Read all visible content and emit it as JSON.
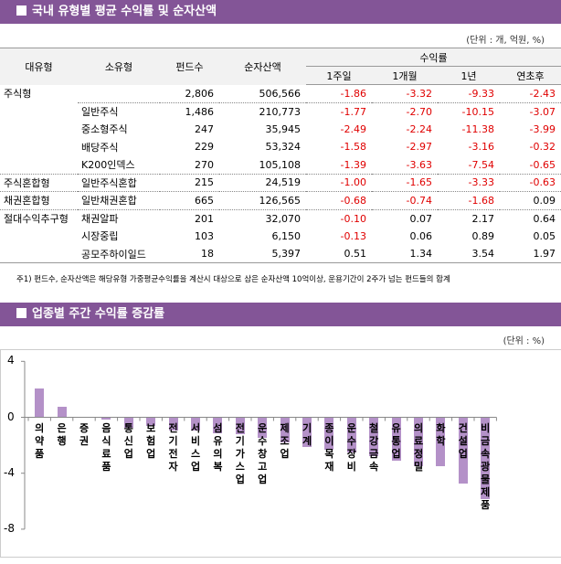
{
  "table_section": {
    "title": "국내 유형별 평균 수익률 및 순자산액",
    "unit": "(단위 : 개, 억원, %)",
    "headers": {
      "major_type": "대유형",
      "minor_type": "소유형",
      "fund_count": "펀드수",
      "net_assets": "순자산액",
      "returns_group": "수익률",
      "week1": "1주일",
      "month1": "1개월",
      "year1": "1년",
      "ytd": "연초후"
    },
    "rows": [
      {
        "major": "주식형",
        "minor": "",
        "count": "2,806",
        "assets": "506,566",
        "w1": "-1.86",
        "m1": "-3.32",
        "y1": "-9.33",
        "ytd": "-2.43"
      },
      {
        "major": "",
        "minor": "일반주식",
        "count": "1,486",
        "assets": "210,773",
        "w1": "-1.77",
        "m1": "-2.70",
        "y1": "-10.15",
        "ytd": "-3.07"
      },
      {
        "major": "",
        "minor": "중소형주식",
        "count": "247",
        "assets": "35,945",
        "w1": "-2.49",
        "m1": "-2.24",
        "y1": "-11.38",
        "ytd": "-3.99"
      },
      {
        "major": "",
        "minor": "배당주식",
        "count": "229",
        "assets": "53,324",
        "w1": "-1.58",
        "m1": "-2.97",
        "y1": "-3.16",
        "ytd": "-0.32"
      },
      {
        "major": "",
        "minor": "K200인덱스",
        "count": "270",
        "assets": "105,108",
        "w1": "-1.39",
        "m1": "-3.63",
        "y1": "-7.54",
        "ytd": "-0.65"
      },
      {
        "major": "주식혼합형",
        "minor": "일반주식혼합",
        "count": "215",
        "assets": "24,519",
        "w1": "-1.00",
        "m1": "-1.65",
        "y1": "-3.33",
        "ytd": "-0.63"
      },
      {
        "major": "채권혼합형",
        "minor": "일반채권혼합",
        "count": "665",
        "assets": "126,565",
        "w1": "-0.68",
        "m1": "-0.74",
        "y1": "-1.68",
        "ytd": "0.09"
      },
      {
        "major": "절대수익추구형",
        "minor": "채권알파",
        "count": "201",
        "assets": "32,070",
        "w1": "-0.10",
        "m1": "0.07",
        "y1": "2.17",
        "ytd": "0.64"
      },
      {
        "major": "",
        "minor": "시장중립",
        "count": "103",
        "assets": "6,150",
        "w1": "-0.13",
        "m1": "0.06",
        "y1": "0.89",
        "ytd": "0.05"
      },
      {
        "major": "",
        "minor": "공모주하이일드",
        "count": "18",
        "assets": "5,397",
        "w1": "0.51",
        "m1": "1.34",
        "y1": "3.54",
        "ytd": "1.97"
      }
    ],
    "note": "주1) 펀드수, 순자산액은 해당유형 가중평균수익률을 계산시 대상으로 삼은 순자산액 10억이상, 운용기간이 2주가 넘는 펀드들의 합계"
  },
  "chart_section": {
    "title": "업종별 주간 수익률 증감률",
    "unit": "(단위 : %)"
  },
  "colors": {
    "header_bg": "#835597",
    "bar": "#b491c8",
    "negative_text": "#e00000"
  },
  "chart_data": {
    "type": "bar",
    "title": "업종별 주간 수익률 증감률",
    "xlabel": "",
    "ylabel": "%",
    "ylim": [
      -8,
      4
    ],
    "yticks": [
      4,
      0,
      -4,
      -8
    ],
    "grid": false,
    "legend": null,
    "categories": [
      "의약품",
      "은행",
      "증권",
      "음식료품",
      "통신업",
      "보험업",
      "전기전자",
      "서비스업",
      "섬유의복",
      "전기가스업",
      "운수창고업",
      "제조업",
      "기계",
      "종이목재",
      "운수장비",
      "철강금속",
      "유통업",
      "의료정밀",
      "화학",
      "건설업",
      "비금속광물제품"
    ],
    "values": [
      2.05,
      0.75,
      0.0,
      -0.15,
      -0.75,
      -0.65,
      -0.95,
      -0.95,
      -1.15,
      -1.2,
      -1.45,
      -1.8,
      -2.1,
      -2.3,
      -2.5,
      -2.75,
      -3.1,
      -3.5,
      -3.5,
      -4.75,
      -5.85
    ]
  }
}
